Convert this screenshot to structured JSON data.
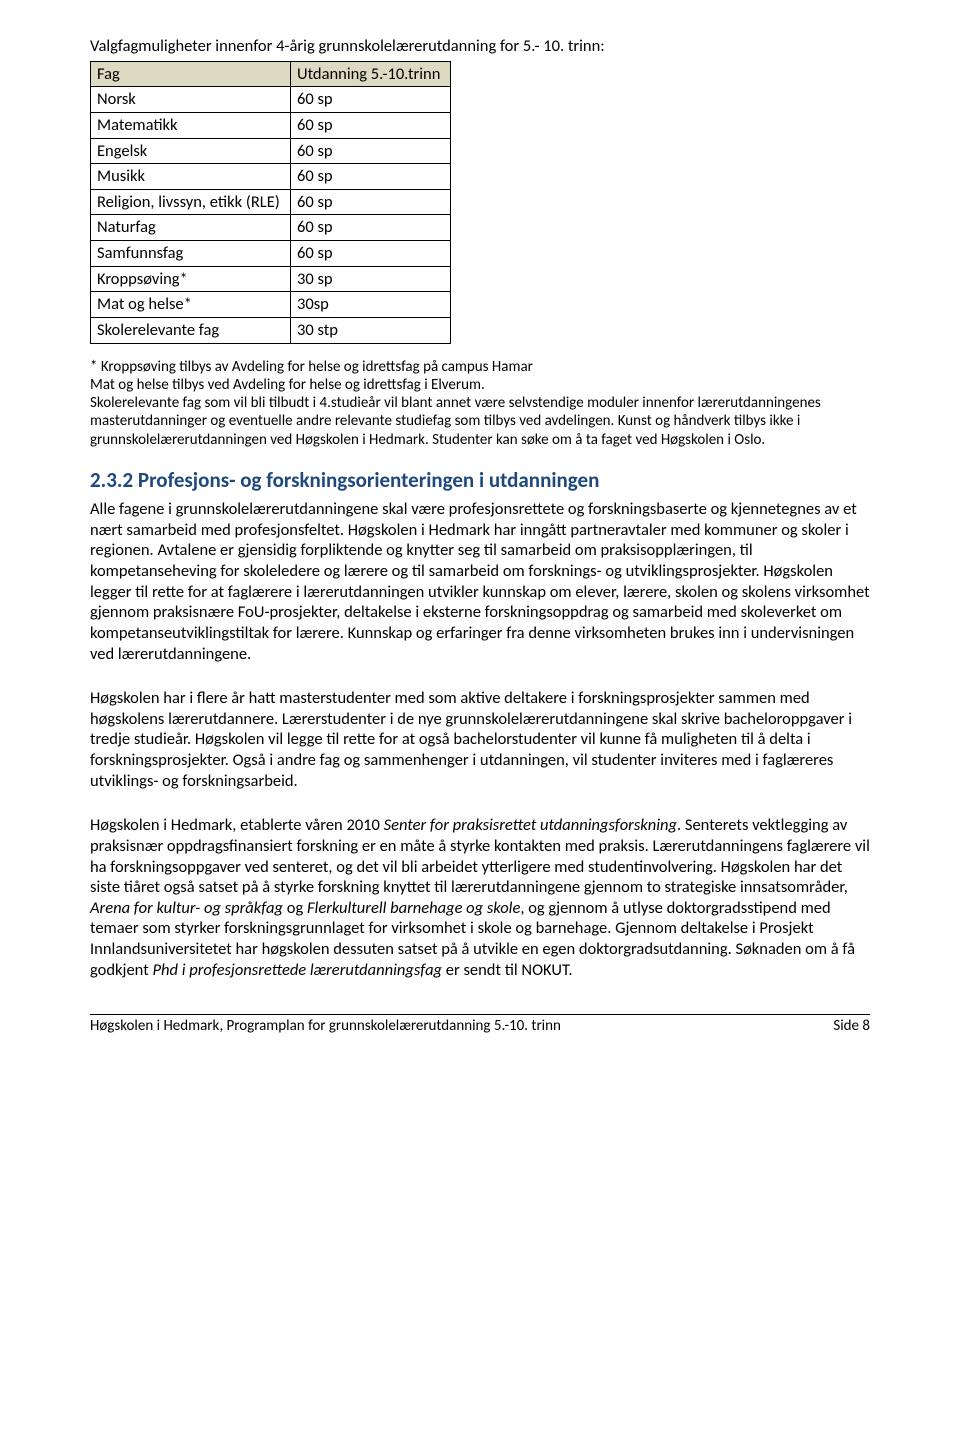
{
  "intro_line": "Valgfagmuligheter innenfor 4-årig grunnskolelærerutdanning for 5.- 10. trinn:",
  "table": {
    "header": {
      "col1": "Fag",
      "col2": "Utdanning 5.-10.trinn"
    },
    "rows": [
      {
        "subject": "Norsk",
        "value": "60 sp"
      },
      {
        "subject": "Matematikk",
        "value": "60 sp"
      },
      {
        "subject": "Engelsk",
        "value": "60 sp"
      },
      {
        "subject": "Musikk",
        "value": "60 sp"
      },
      {
        "subject": "Religion, livssyn, etikk (RLE)",
        "value": "60 sp"
      },
      {
        "subject": "Naturfag",
        "value": "60 sp"
      },
      {
        "subject": "Samfunnsfag",
        "value": "60 sp"
      },
      {
        "subject": "Kroppsøving*",
        "value": "30 sp"
      },
      {
        "subject": "Mat og helse*",
        "value": "30sp"
      },
      {
        "subject": "Skolerelevante fag",
        "value": "30 stp"
      }
    ]
  },
  "note": {
    "l1": "* Kroppsøving tilbys av Avdeling for helse og idrettsfag på campus Hamar",
    "l2": "Mat og helse tilbys ved Avdeling for helse og idrettsfag i Elverum.",
    "l3": "Skolerelevante fag som vil bli tilbudt i 4.studieår vil blant annet være selvstendige moduler innenfor lærerutdanningenes masterutdanninger og eventuelle andre relevante studiefag som tilbys ved avdelingen. Kunst og håndverk tilbys ikke i grunnskolelærerutdanningen ved Høgskolen i Hedmark. Studenter kan søke om å ta faget ved Høgskolen i Oslo."
  },
  "section_heading": "2.3.2   Profesjons- og forskningsorienteringen i utdanningen",
  "para1": "Alle fagene i grunnskolelærerutdanningene skal være profesjonsrettete og forskningsbaserte og kjennetegnes av et nært samarbeid med profesjonsfeltet. Høgskolen i Hedmark har inngått partneravtaler med kommuner og skoler i regionen. Avtalene er gjensidig forpliktende og knytter seg til samarbeid om praksisopplæringen, til kompetanseheving for skoleledere og lærere og til samarbeid om forsknings- og utviklingsprosjekter. Høgskolen legger til rette for at faglærere i lærerutdanningen utvikler kunnskap om elever, lærere, skolen og skolens virksomhet gjennom praksisnære FoU-prosjekter, deltakelse i eksterne forskningsoppdrag og samarbeid med skoleverket om kompetanseutviklingstiltak for lærere. Kunnskap og erfaringer fra denne virksomheten brukes inn i undervisningen ved lærerutdanningene.",
  "para2": "Høgskolen har i flere år hatt masterstudenter med som aktive deltakere i forskningsprosjekter sammen med høgskolens lærerutdannere. Lærerstudenter i de nye grunnskolelærerutdanningene skal skrive bacheloroppgaver i tredje studieår. Høgskolen vil legge til rette for at også bachelorstudenter vil kunne få muligheten til å delta i forskningsprosjekter. Også i andre fag og sammenhenger i utdanningen, vil studenter inviteres med i faglæreres utviklings- og forskningsarbeid.",
  "para3_pre": "Høgskolen i Hedmark, etablerte våren 2010 ",
  "para3_em1": "Senter for praksisrettet utdanningsforskning",
  "para3_mid1": ". Senterets vektlegging av praksisnær oppdragsfinansiert forskning er en måte å styrke kontakten med praksis. Lærerutdanningens faglærere vil ha forskningsoppgaver ved senteret, og det vil bli arbeidet ytterligere med studentinvolvering. Høgskolen har det siste tiåret også satset på å styrke forskning knyttet til lærerutdanningene gjennom to strategiske innsatsområder, ",
  "para3_em2": "Arena for kultur- og språkfag",
  "para3_mid2": " og ",
  "para3_em3": "Flerkulturell barnehage og skole",
  "para3_mid3": ", og gjennom å utlyse doktorgradsstipend med temaer som styrker forskningsgrunnlaget for virksomhet i skole og barnehage. Gjennom deltakelse i Prosjekt Innlandsuniversitetet har høgskolen dessuten satset på å utvikle en egen doktorgradsutdanning. Søknaden om å få godkjent ",
  "para3_em4": "Phd i profesjonsrettede lærerutdanningsfag",
  "para3_post": " er sendt til NOKUT.",
  "footer_left": "Høgskolen i Hedmark, Programplan for grunnskolelærerutdanning 5.-10. trinn",
  "footer_right": "Side 8"
}
